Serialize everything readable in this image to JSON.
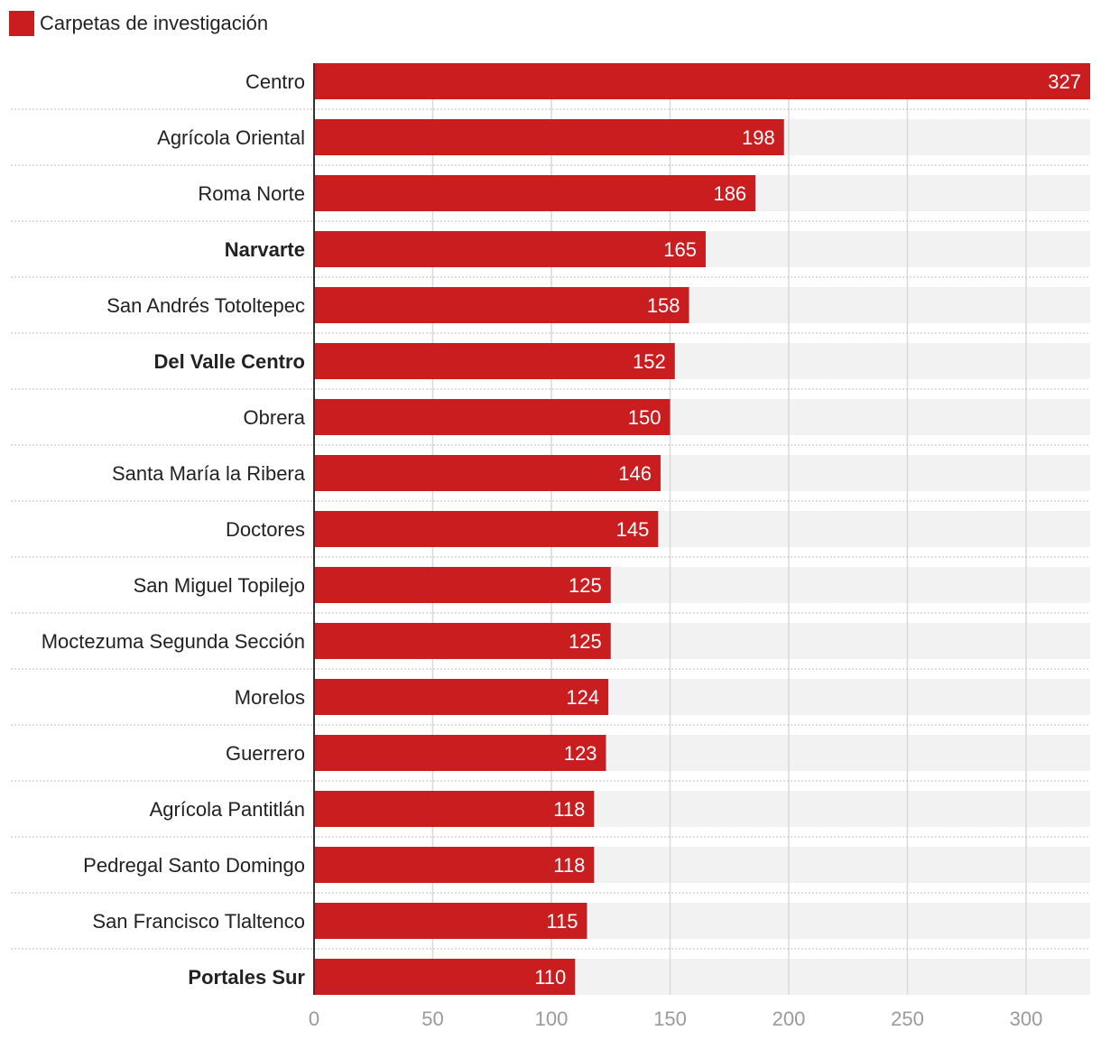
{
  "chart_data": {
    "type": "bar",
    "orientation": "horizontal",
    "legend": {
      "label": "Carpetas de investigación",
      "placement": "top-left"
    },
    "categories": [
      "Centro",
      "Agrícola Oriental",
      "Roma Norte",
      "Narvarte",
      "San Andrés Totoltepec",
      "Del Valle Centro",
      "Obrera",
      "Santa María la Ribera",
      "Doctores",
      "San Miguel Topilejo",
      "Moctezuma Segunda Sección",
      "Morelos",
      "Guerrero",
      "Agrícola Pantitlán",
      "Pedregal Santo Domingo",
      "San Francisco Tlaltenco",
      "Portales Sur"
    ],
    "bold_categories": [
      "Narvarte",
      "Del Valle Centro",
      "Portales Sur"
    ],
    "series": [
      {
        "name": "Carpetas de investigación",
        "values": [
          327,
          198,
          186,
          165,
          158,
          152,
          150,
          146,
          145,
          125,
          125,
          124,
          123,
          118,
          118,
          115,
          110
        ]
      }
    ],
    "xlim": [
      0,
      327
    ],
    "xticks": [
      0,
      50,
      100,
      150,
      200,
      250,
      300
    ],
    "grid": true,
    "colors": {
      "bar": "#c91d1f",
      "track": "#f2f2f2",
      "grid": "#d9d9d9",
      "tick_label": "#9a9a9a",
      "label": "#222222"
    }
  }
}
